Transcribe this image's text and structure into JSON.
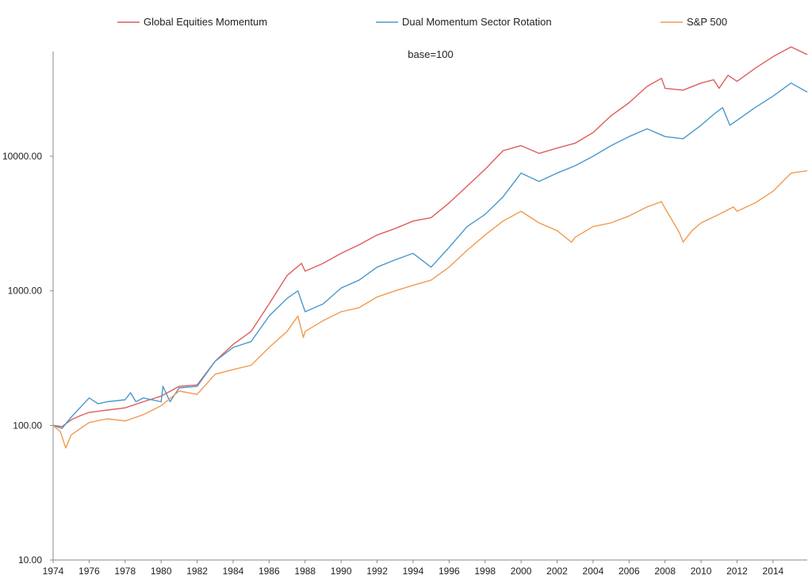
{
  "chart_data": {
    "type": "line",
    "title": "",
    "subtitle": "base=100",
    "xlabel": "",
    "ylabel": "",
    "yscale": "log",
    "ylim": [
      10,
      60000
    ],
    "xlim": [
      1974,
      2015.9
    ],
    "grid": false,
    "legend_position": "top",
    "x_ticks": [
      "1974",
      "1976",
      "1978",
      "1980",
      "1982",
      "1984",
      "1986",
      "1988",
      "1990",
      "1992",
      "1994",
      "1996",
      "1998",
      "2000",
      "2002",
      "2004",
      "2006",
      "2008",
      "2010",
      "2012",
      "2014"
    ],
    "y_ticks": [
      "10.00",
      "100.00",
      "1000.00",
      "10000.00"
    ],
    "series": [
      {
        "name": "Global Equities Momentum",
        "color": "#e05c5c",
        "points": [
          [
            1974,
            100
          ],
          [
            1974.5,
            98
          ],
          [
            1975,
            110
          ],
          [
            1975.5,
            118
          ],
          [
            1976,
            125
          ],
          [
            1977,
            130
          ],
          [
            1978,
            135
          ],
          [
            1979,
            150
          ],
          [
            1980,
            165
          ],
          [
            1981,
            195
          ],
          [
            1982,
            200
          ],
          [
            1983,
            300
          ],
          [
            1984,
            400
          ],
          [
            1985,
            500
          ],
          [
            1986,
            800
          ],
          [
            1987,
            1300
          ],
          [
            1987.8,
            1600
          ],
          [
            1988,
            1400
          ],
          [
            1989,
            1600
          ],
          [
            1990,
            1900
          ],
          [
            1991,
            2200
          ],
          [
            1992,
            2600
          ],
          [
            1993,
            2900
          ],
          [
            1994,
            3300
          ],
          [
            1995,
            3500
          ],
          [
            1996,
            4500
          ],
          [
            1997,
            6000
          ],
          [
            1998,
            8000
          ],
          [
            1999,
            11000
          ],
          [
            2000,
            12000
          ],
          [
            2001,
            10500
          ],
          [
            2002,
            11500
          ],
          [
            2003,
            12500
          ],
          [
            2004,
            15000
          ],
          [
            2005,
            20000
          ],
          [
            2006,
            25000
          ],
          [
            2007,
            33000
          ],
          [
            2007.8,
            38000
          ],
          [
            2008,
            32000
          ],
          [
            2009,
            31000
          ],
          [
            2010,
            35000
          ],
          [
            2010.7,
            37000
          ],
          [
            2011,
            32000
          ],
          [
            2011.5,
            40000
          ],
          [
            2012,
            36000
          ],
          [
            2013,
            45000
          ],
          [
            2014,
            55000
          ],
          [
            2015,
            65000
          ],
          [
            2015.9,
            57000
          ]
        ]
      },
      {
        "name": "Dual Momentum Sector Rotation",
        "color": "#4a98cc",
        "points": [
          [
            1974,
            100
          ],
          [
            1974.5,
            95
          ],
          [
            1975,
            115
          ],
          [
            1976,
            160
          ],
          [
            1976.5,
            145
          ],
          [
            1977,
            150
          ],
          [
            1978,
            155
          ],
          [
            1978.3,
            175
          ],
          [
            1978.6,
            150
          ],
          [
            1979,
            160
          ],
          [
            1980,
            150
          ],
          [
            1980.1,
            195
          ],
          [
            1980.5,
            150
          ],
          [
            1981,
            190
          ],
          [
            1982,
            195
          ],
          [
            1983,
            300
          ],
          [
            1984,
            380
          ],
          [
            1985,
            420
          ],
          [
            1986,
            650
          ],
          [
            1987,
            880
          ],
          [
            1987.6,
            1000
          ],
          [
            1988,
            700
          ],
          [
            1989,
            800
          ],
          [
            1990,
            1050
          ],
          [
            1991,
            1200
          ],
          [
            1992,
            1500
          ],
          [
            1993,
            1700
          ],
          [
            1994,
            1900
          ],
          [
            1995,
            1500
          ],
          [
            1996,
            2100
          ],
          [
            1997,
            3000
          ],
          [
            1998,
            3700
          ],
          [
            1999,
            5000
          ],
          [
            2000,
            7500
          ],
          [
            2001,
            6500
          ],
          [
            2002,
            7500
          ],
          [
            2003,
            8500
          ],
          [
            2004,
            10000
          ],
          [
            2005,
            12000
          ],
          [
            2006,
            14000
          ],
          [
            2007,
            16000
          ],
          [
            2008,
            14000
          ],
          [
            2009,
            13500
          ],
          [
            2010,
            17000
          ],
          [
            2010.8,
            21000
          ],
          [
            2011.2,
            23000
          ],
          [
            2011.6,
            17000
          ],
          [
            2012,
            18500
          ],
          [
            2013,
            23000
          ],
          [
            2014,
            28000
          ],
          [
            2015,
            35000
          ],
          [
            2015.9,
            30000
          ]
        ]
      },
      {
        "name": "S&P 500",
        "color": "#f09a50",
        "points": [
          [
            1974,
            100
          ],
          [
            1974.4,
            90
          ],
          [
            1974.7,
            68
          ],
          [
            1975,
            85
          ],
          [
            1976,
            105
          ],
          [
            1977,
            112
          ],
          [
            1978,
            108
          ],
          [
            1979,
            120
          ],
          [
            1980,
            140
          ],
          [
            1981,
            180
          ],
          [
            1982,
            170
          ],
          [
            1983,
            240
          ],
          [
            1984,
            260
          ],
          [
            1985,
            280
          ],
          [
            1986,
            380
          ],
          [
            1987,
            500
          ],
          [
            1987.6,
            650
          ],
          [
            1987.9,
            450
          ],
          [
            1988,
            500
          ],
          [
            1989,
            600
          ],
          [
            1990,
            700
          ],
          [
            1991,
            750
          ],
          [
            1992,
            900
          ],
          [
            1993,
            1000
          ],
          [
            1994,
            1100
          ],
          [
            1995,
            1200
          ],
          [
            1996,
            1500
          ],
          [
            1997,
            2000
          ],
          [
            1998,
            2600
          ],
          [
            1999,
            3300
          ],
          [
            2000,
            3900
          ],
          [
            2001,
            3200
          ],
          [
            2002,
            2800
          ],
          [
            2002.8,
            2300
          ],
          [
            2003,
            2500
          ],
          [
            2004,
            3000
          ],
          [
            2005,
            3200
          ],
          [
            2006,
            3600
          ],
          [
            2007,
            4200
          ],
          [
            2007.8,
            4600
          ],
          [
            2008,
            4100
          ],
          [
            2008.8,
            2700
          ],
          [
            2009,
            2300
          ],
          [
            2009.5,
            2800
          ],
          [
            2010,
            3200
          ],
          [
            2011,
            3700
          ],
          [
            2011.8,
            4200
          ],
          [
            2012,
            3900
          ],
          [
            2013,
            4500
          ],
          [
            2014,
            5500
          ],
          [
            2015,
            7500
          ],
          [
            2015.9,
            7800
          ]
        ]
      }
    ]
  }
}
